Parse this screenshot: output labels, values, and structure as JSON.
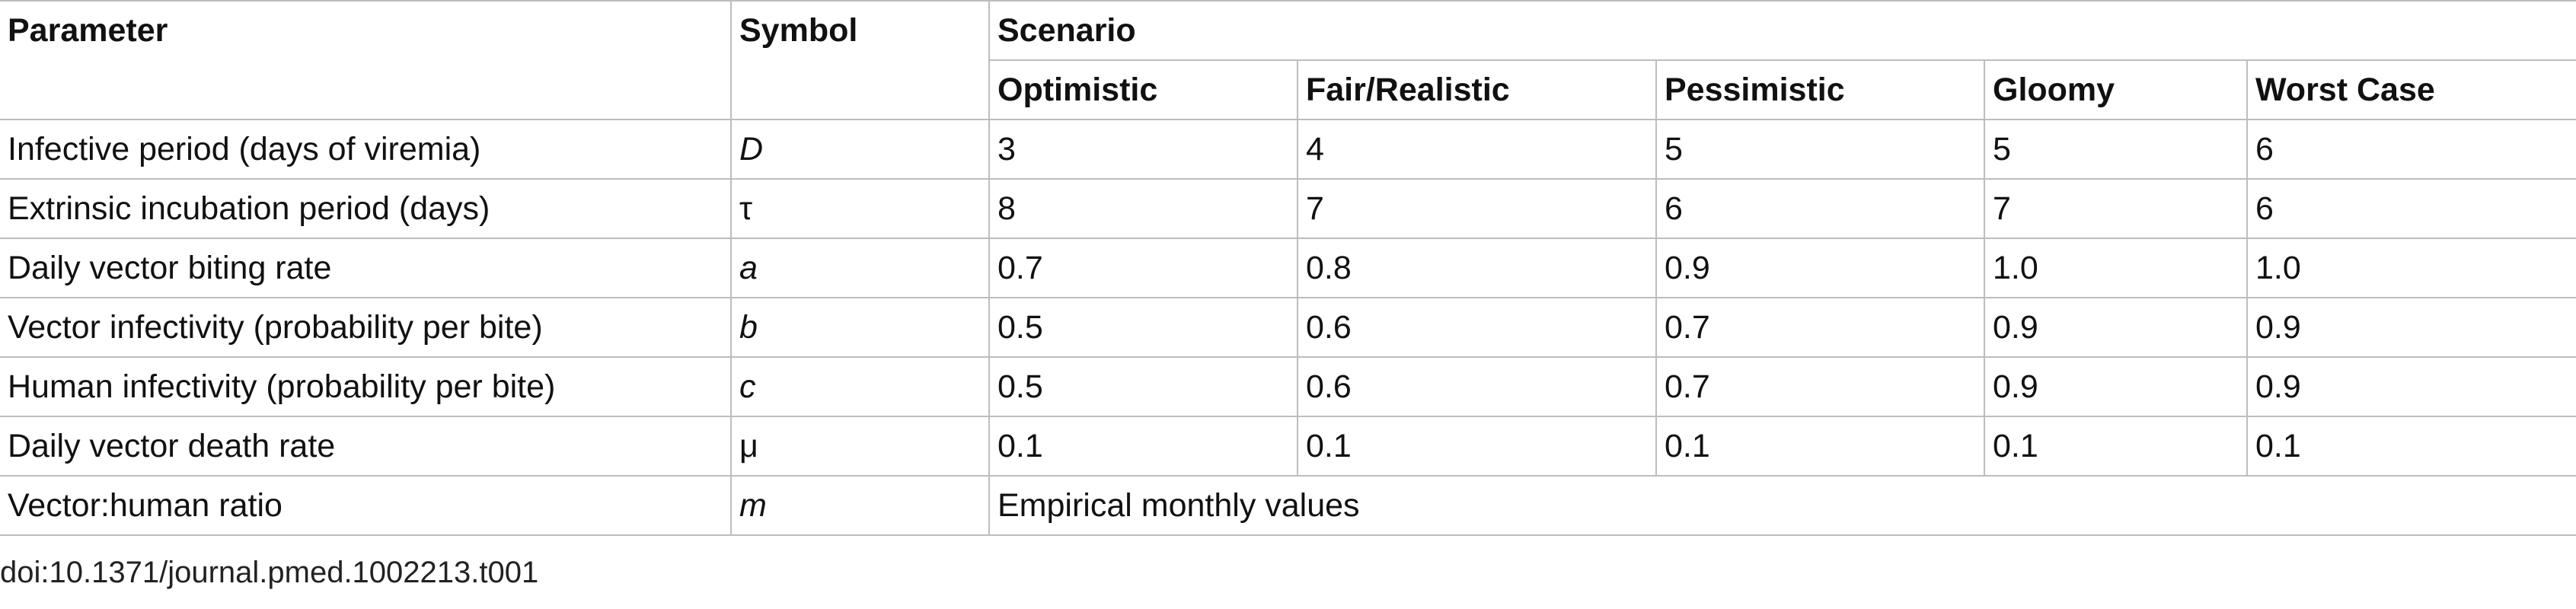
{
  "table": {
    "header": {
      "parameter": "Parameter",
      "symbol": "Symbol",
      "scenario": "Scenario",
      "scenarios": [
        "Optimistic",
        "Fair/Realistic",
        "Pessimistic",
        "Gloomy",
        "Worst Case"
      ]
    },
    "rows": [
      [
        "Infective period (days of viremia)",
        "D",
        "3",
        "4",
        "5",
        "5",
        "6"
      ],
      [
        "Extrinsic incubation period (days)",
        "τ",
        "8",
        "7",
        "6",
        "7",
        "6"
      ],
      [
        "Daily vector biting rate",
        "a",
        "0.7",
        "0.8",
        "0.9",
        "1.0",
        "1.0"
      ],
      [
        "Vector infectivity (probability per bite)",
        "b",
        "0.5",
        "0.6",
        "0.7",
        "0.9",
        "0.9"
      ],
      [
        "Human infectivity (probability per bite)",
        "c",
        "0.5",
        "0.6",
        "0.7",
        "0.9",
        "0.9"
      ],
      [
        "Daily vector death rate",
        "μ",
        "0.1",
        "0.1",
        "0.1",
        "0.1",
        "0.1"
      ],
      [
        "Vector:human ratio",
        "m",
        "Empirical monthly values"
      ]
    ]
  },
  "footer": "doi:10.1371/journal.pmed.1002213.t001"
}
